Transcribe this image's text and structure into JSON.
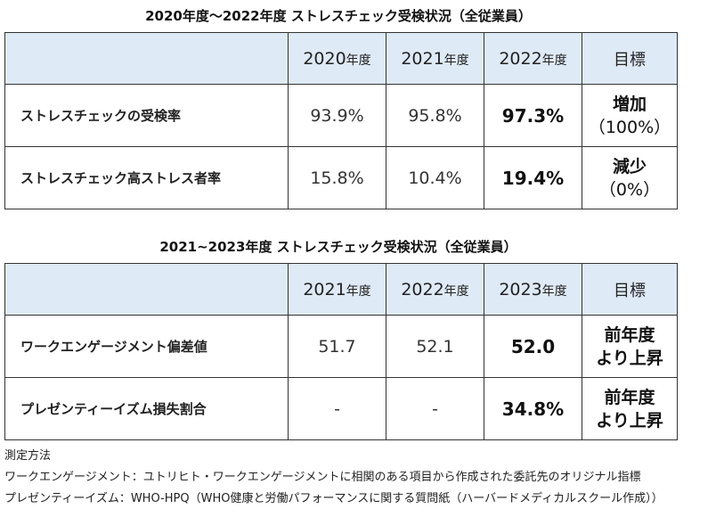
{
  "table1": {
    "title": "2020年度～2022年度 ストレスチェック受検状況（全従業員）",
    "headers": [
      {
        "num": "2020",
        "unit": "年度"
      },
      {
        "num": "2021",
        "unit": "年度"
      },
      {
        "num": "2022",
        "unit": "年度"
      }
    ],
    "goal_header": "目標",
    "rows": [
      {
        "label": "ストレスチェックの受検率",
        "v1": "93.9%",
        "v2": "95.8%",
        "v3": "97.3%",
        "goal_main": "増加",
        "goal_sub": "（100%）"
      },
      {
        "label": "ストレスチェック高ストレス者率",
        "v1": "15.8%",
        "v2": "10.4%",
        "v3": "19.4%",
        "goal_main": "減少",
        "goal_sub": "（0%）"
      }
    ]
  },
  "table2": {
    "title": "2021~2023年度 ストレスチェック受検状況（全従業員）",
    "headers": [
      {
        "num": "2021",
        "unit": "年度"
      },
      {
        "num": "2022",
        "unit": "年度"
      },
      {
        "num": "2023",
        "unit": "年度"
      }
    ],
    "goal_header": "目標",
    "rows": [
      {
        "label": "ワークエンゲージメント偏差値",
        "v1": "51.7",
        "v2": "52.1",
        "v3": "52.0",
        "goal_line1": "前年度",
        "goal_line2": "より上昇"
      },
      {
        "label": "プレゼンティーイズム損失割合",
        "v1": "-",
        "v2": "-",
        "v3": "34.8%",
        "goal_line1": "前年度",
        "goal_line2": "より上昇"
      }
    ]
  },
  "notes": {
    "heading": "測定方法",
    "line1": "ワークエンゲージメント：ユトリヒト・ワークエンゲージメントに相関のある項目から作成された委託先のオリジナル指標",
    "line2": "プレゼンティーイズム：WHO-HPQ（WHO健康と労働パフォーマンスに関する質問紙（ハーバードメディカルスクール作成））"
  }
}
